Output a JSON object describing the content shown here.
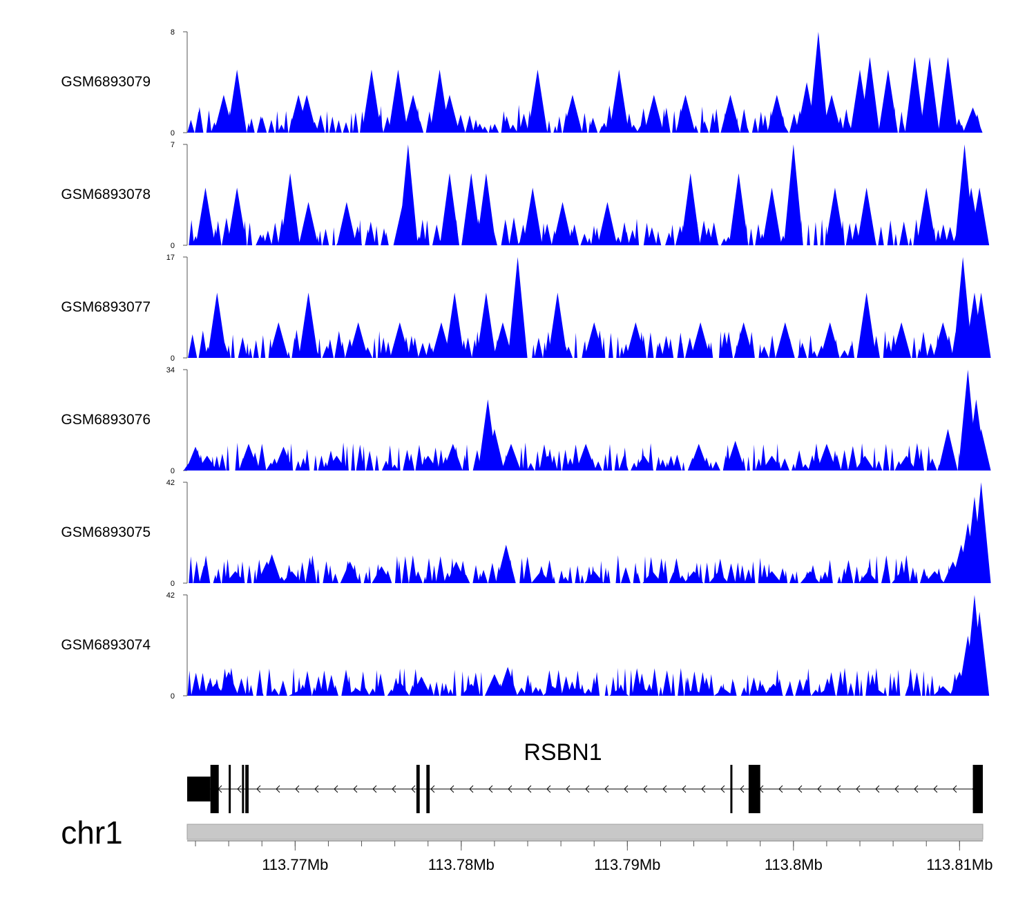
{
  "chart_data": {
    "type": "area",
    "title": "",
    "chromosome": "chr1",
    "gene": {
      "name": "RSBN1",
      "strand": "-",
      "start_mb": 113.7635,
      "end_mb": 113.8114,
      "exons_mb": [
        [
          113.7635,
          113.7649
        ],
        [
          113.7649,
          113.7654
        ],
        [
          113.766,
          113.7661
        ],
        [
          113.7668,
          113.7669
        ],
        [
          113.767,
          113.7672
        ],
        [
          113.7773,
          113.7775
        ],
        [
          113.7779,
          113.7781
        ],
        [
          113.7962,
          113.7963
        ],
        [
          113.7973,
          113.798
        ],
        [
          113.8108,
          113.8114
        ]
      ]
    },
    "x_axis": {
      "xlim_mb": [
        113.7635,
        113.8114
      ],
      "ticks_mb": [
        113.77,
        113.78,
        113.79,
        113.8,
        113.81
      ],
      "tick_labels": [
        "113.77Mb",
        "113.78Mb",
        "113.79Mb",
        "113.8Mb",
        "113.81Mb"
      ],
      "minor_step_mb": 0.002
    },
    "series": [
      {
        "name": "GSM6893079",
        "ylim": [
          0,
          8
        ],
        "peaks": [
          [
            113.7665,
            5
          ],
          [
            113.7657,
            3
          ],
          [
            113.7702,
            3
          ],
          [
            113.7707,
            3
          ],
          [
            113.7746,
            5
          ],
          [
            113.7762,
            5
          ],
          [
            113.7771,
            3
          ],
          [
            113.7787,
            5
          ],
          [
            113.7793,
            3
          ],
          [
            113.7846,
            5
          ],
          [
            113.7867,
            3
          ],
          [
            113.7895,
            5
          ],
          [
            113.7916,
            3
          ],
          [
            113.7935,
            3
          ],
          [
            113.7962,
            3
          ],
          [
            113.799,
            3
          ],
          [
            113.8008,
            4
          ],
          [
            113.8013,
            3
          ],
          [
            113.8015,
            8
          ],
          [
            113.8023,
            3
          ],
          [
            113.804,
            5
          ],
          [
            113.8046,
            6
          ],
          [
            113.8057,
            5
          ],
          [
            113.8073,
            6
          ],
          [
            113.8082,
            6
          ],
          [
            113.8093,
            6
          ],
          [
            113.8108,
            2
          ]
        ]
      },
      {
        "name": "GSM6893078",
        "ylim": [
          0,
          7
        ],
        "peaks": [
          [
            113.7646,
            4
          ],
          [
            113.7665,
            4
          ],
          [
            113.7697,
            5
          ],
          [
            113.7708,
            3
          ],
          [
            113.7731,
            3
          ],
          [
            113.7765,
            3
          ],
          [
            113.7768,
            7
          ],
          [
            113.7793,
            5
          ],
          [
            113.7806,
            5
          ],
          [
            113.7815,
            5
          ],
          [
            113.7843,
            4
          ],
          [
            113.7861,
            3
          ],
          [
            113.7888,
            3
          ],
          [
            113.7938,
            5
          ],
          [
            113.7967,
            5
          ],
          [
            113.7987,
            4
          ],
          [
            113.8,
            7
          ],
          [
            113.8025,
            4
          ],
          [
            113.8044,
            4
          ],
          [
            113.808,
            4
          ],
          [
            113.8103,
            7
          ],
          [
            113.8107,
            4
          ],
          [
            113.8112,
            4
          ]
        ]
      },
      {
        "name": "GSM6893077",
        "ylim": [
          0,
          17
        ],
        "peaks": [
          [
            113.7653,
            11
          ],
          [
            113.769,
            6
          ],
          [
            113.7708,
            11
          ],
          [
            113.7738,
            6
          ],
          [
            113.7763,
            6
          ],
          [
            113.7788,
            6
          ],
          [
            113.7796,
            11
          ],
          [
            113.7815,
            11
          ],
          [
            113.7825,
            6
          ],
          [
            113.7834,
            17
          ],
          [
            113.7858,
            11
          ],
          [
            113.788,
            6
          ],
          [
            113.7905,
            6
          ],
          [
            113.7944,
            6
          ],
          [
            113.797,
            6
          ],
          [
            113.7995,
            6
          ],
          [
            113.8022,
            6
          ],
          [
            113.8044,
            11
          ],
          [
            113.8065,
            6
          ],
          [
            113.809,
            6
          ],
          [
            113.8102,
            17
          ],
          [
            113.8109,
            11
          ],
          [
            113.8113,
            11
          ]
        ]
      },
      {
        "name": "GSM6893076",
        "ylim": [
          0,
          34
        ],
        "peaks": [
          [
            113.764,
            8
          ],
          [
            113.7647,
            5
          ],
          [
            113.7672,
            9
          ],
          [
            113.7693,
            8
          ],
          [
            113.7725,
            5
          ],
          [
            113.778,
            5
          ],
          [
            113.7795,
            9
          ],
          [
            113.7816,
            24
          ],
          [
            113.782,
            14
          ],
          [
            113.783,
            9
          ],
          [
            113.7852,
            5
          ],
          [
            113.7875,
            9
          ],
          [
            113.791,
            5
          ],
          [
            113.7943,
            9
          ],
          [
            113.7965,
            10
          ],
          [
            113.7987,
            5
          ],
          [
            113.802,
            9
          ],
          [
            113.8043,
            5
          ],
          [
            113.8068,
            5
          ],
          [
            113.8093,
            14
          ],
          [
            113.8105,
            34
          ],
          [
            113.811,
            24
          ],
          [
            113.8113,
            14
          ]
        ]
      },
      {
        "name": "GSM6893075",
        "ylim": [
          0,
          42
        ],
        "peaks": [
          [
            113.7664,
            5
          ],
          [
            113.7683,
            9
          ],
          [
            113.7686,
            12
          ],
          [
            113.7698,
            5
          ],
          [
            113.7733,
            9
          ],
          [
            113.7752,
            7
          ],
          [
            113.7797,
            9
          ],
          [
            113.7827,
            16
          ],
          [
            113.7848,
            5
          ],
          [
            113.788,
            5
          ],
          [
            113.7915,
            5
          ],
          [
            113.794,
            5
          ],
          [
            113.7955,
            5
          ],
          [
            113.7987,
            5
          ],
          [
            113.801,
            5
          ],
          [
            113.8045,
            5
          ],
          [
            113.8065,
            5
          ],
          [
            113.8085,
            5
          ],
          [
            113.8096,
            9
          ],
          [
            113.8101,
            16
          ],
          [
            113.8105,
            25
          ],
          [
            113.8109,
            36
          ],
          [
            113.8113,
            42
          ]
        ]
      },
      {
        "name": "GSM6893074",
        "ylim": [
          0,
          42
        ],
        "peaks": [
          [
            113.7652,
            5
          ],
          [
            113.766,
            10
          ],
          [
            113.7702,
            2
          ],
          [
            113.7737,
            3
          ],
          [
            113.7763,
            6
          ],
          [
            113.7776,
            8
          ],
          [
            113.7806,
            5
          ],
          [
            113.782,
            9
          ],
          [
            113.7828,
            12
          ],
          [
            113.7855,
            4
          ],
          [
            113.787,
            4
          ],
          [
            113.7895,
            3
          ],
          [
            113.791,
            3
          ],
          [
            113.794,
            3
          ],
          [
            113.7958,
            3
          ],
          [
            113.798,
            3
          ],
          [
            113.7988,
            5
          ],
          [
            113.802,
            3
          ],
          [
            113.805,
            3
          ],
          [
            113.809,
            4
          ],
          [
            113.81,
            10
          ],
          [
            113.8105,
            25
          ],
          [
            113.8109,
            42
          ],
          [
            113.8112,
            35
          ]
        ]
      }
    ]
  }
}
